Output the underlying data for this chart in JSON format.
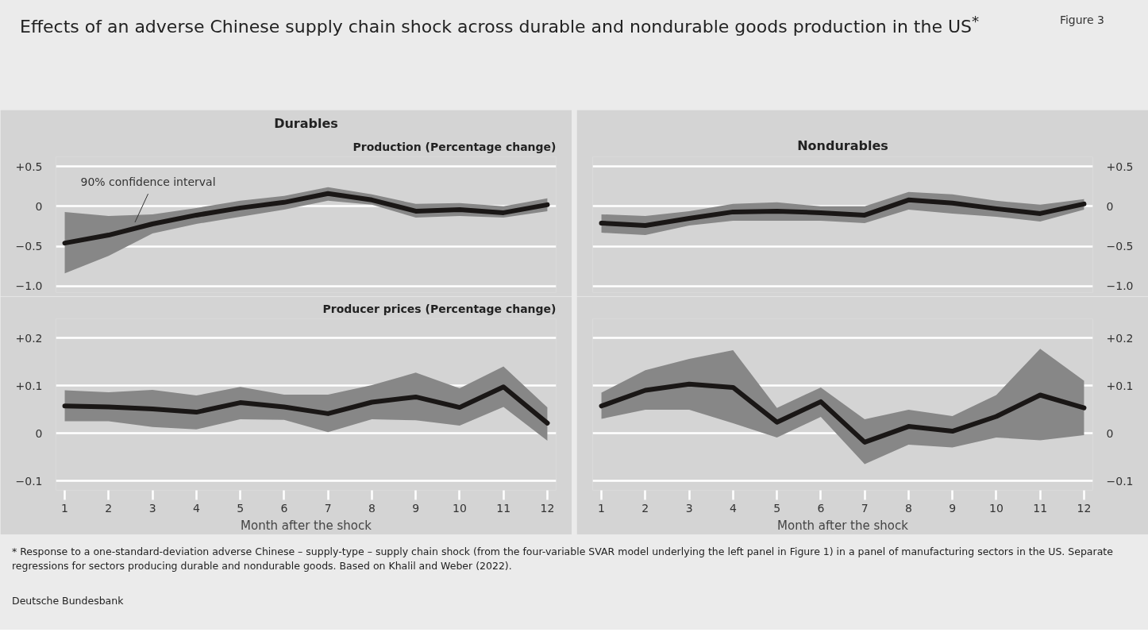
{
  "chart_data": [
    {
      "type": "line",
      "title": "Effects of an adverse Chinese supply chain shock across durable and nondurable goods production in the US$^{*}$",
      "subtitle": "Durables",
      "ylabel": "Production (Percentage change)",
      "x": [
        1,
        2,
        3,
        4,
        5,
        6,
        7,
        8,
        9,
        10,
        11,
        12
      ],
      "xlim": [
        0.8,
        12.2
      ],
      "ylim": [
        -1.08,
        0.62
      ],
      "yticks": [
        {
          "value": 0.5,
          "label": "+0.5"
        },
        0,
        {
          "value": -0.5,
          "label": "−0.5"
        },
        {
          "value": -1.0,
          "label": "−1.0"
        }
      ],
      "series": [
        {
          "color": "#1a1716",
          "values": [
            -0.46,
            -0.36,
            -0.22,
            -0.11,
            -0.02,
            0.05,
            0.16,
            0.08,
            -0.06,
            -0.04,
            -0.08,
            0.02
          ],
          "upper": [
            -0.07,
            -0.12,
            -0.1,
            -0.02,
            0.07,
            0.13,
            0.24,
            0.15,
            0.03,
            0.04,
            0.0,
            0.1
          ],
          "lower": [
            -0.84,
            -0.62,
            -0.34,
            -0.22,
            -0.13,
            -0.04,
            0.07,
            0.02,
            -0.14,
            -0.12,
            -0.14,
            -0.06
          ]
        }
      ],
      "annotations": [
        "Figure 3",
        {
          "text": "90% confidence interval",
          "x": 2.6,
          "y": -0.2
        },
        "* Response to a one-standard-deviation adverse Chinese – supply-type – supply chain shock (from the four-variable SVAR model underlying the left panel in Figure 1) in a panel of manufacturing sectors in the US. Separate regressions for sectors producing durable and nondurable goods. Based on Khalil and Weber (2022).",
        "Deutsche Bundesbank"
      ],
      "grid": "y",
      "tick_labels": "y"
    },
    {
      "type": "line",
      "subtitle": "Nondurables",
      "x": [
        1,
        2,
        3,
        4,
        5,
        6,
        7,
        8,
        9,
        10,
        11,
        12
      ],
      "xlim": [
        0.8,
        12.2
      ],
      "ylim": [
        -1.08,
        0.62
      ],
      "yticks": [
        {
          "value": 0.5,
          "label": "+0.5"
        },
        0,
        {
          "value": -0.5,
          "label": "−0.5"
        },
        {
          "value": -1.0,
          "label": "−1.0"
        }
      ],
      "series": [
        {
          "color": "#1a1716",
          "values": [
            -0.21,
            -0.24,
            -0.15,
            -0.07,
            -0.06,
            -0.08,
            -0.11,
            0.08,
            0.04,
            -0.03,
            -0.09,
            0.03
          ],
          "upper": [
            -0.1,
            -0.12,
            -0.06,
            0.03,
            0.05,
            0.0,
            0.0,
            0.18,
            0.15,
            0.07,
            0.02,
            0.09
          ],
          "lower": [
            -0.33,
            -0.36,
            -0.24,
            -0.18,
            -0.18,
            -0.18,
            -0.21,
            -0.04,
            -0.09,
            -0.13,
            -0.19,
            -0.04
          ]
        }
      ],
      "grid": "y",
      "tick_labels": "y"
    },
    {
      "type": "line",
      "ylabel": "Producer prices (Percentage change)",
      "xlabel": "Month after the shock",
      "x": [
        1,
        2,
        3,
        4,
        5,
        6,
        7,
        8,
        9,
        10,
        11,
        12
      ],
      "xlim": [
        0.8,
        12.2
      ],
      "ylim": [
        -0.12,
        0.24
      ],
      "xticks": [
        1,
        2,
        3,
        4,
        5,
        6,
        7,
        8,
        9,
        10,
        11,
        12
      ],
      "yticks": [
        {
          "value": 0.2,
          "label": "+0.2"
        },
        {
          "value": 0.1,
          "label": "+0.1"
        },
        0,
        {
          "value": -0.1,
          "label": "−0.1"
        }
      ],
      "series": [
        {
          "color": "#1a1716",
          "values": [
            0.057,
            0.055,
            0.051,
            0.044,
            0.064,
            0.055,
            0.041,
            0.065,
            0.076,
            0.054,
            0.097,
            0.021
          ],
          "upper": [
            0.09,
            0.086,
            0.091,
            0.079,
            0.097,
            0.081,
            0.081,
            0.101,
            0.127,
            0.094,
            0.14,
            0.054
          ],
          "lower": [
            0.025,
            0.025,
            0.013,
            0.008,
            0.029,
            0.028,
            0.002,
            0.029,
            0.027,
            0.016,
            0.055,
            -0.016
          ]
        }
      ],
      "grid": "y"
    },
    {
      "type": "line",
      "xlabel": "Month after the shock",
      "x": [
        1,
        2,
        3,
        4,
        5,
        6,
        7,
        8,
        9,
        10,
        11,
        12
      ],
      "xlim": [
        0.8,
        12.2
      ],
      "ylim": [
        -0.12,
        0.24
      ],
      "xticks": [
        1,
        2,
        3,
        4,
        5,
        6,
        7,
        8,
        9,
        10,
        11,
        12
      ],
      "yticks": [
        {
          "value": 0.2,
          "label": "+0.2"
        },
        {
          "value": 0.1,
          "label": "+0.1"
        },
        0,
        {
          "value": -0.1,
          "label": "−0.1"
        }
      ],
      "series": [
        {
          "color": "#1a1716",
          "values": [
            0.057,
            0.09,
            0.103,
            0.096,
            0.023,
            0.066,
            -0.019,
            0.014,
            0.004,
            0.035,
            0.08,
            0.053
          ],
          "upper": [
            0.085,
            0.132,
            0.156,
            0.174,
            0.053,
            0.096,
            0.029,
            0.049,
            0.036,
            0.08,
            0.177,
            0.11
          ],
          "lower": [
            0.03,
            0.049,
            0.049,
            0.021,
            -0.009,
            0.034,
            -0.065,
            -0.024,
            -0.03,
            -0.009,
            -0.015,
            -0.004
          ]
        }
      ],
      "grid": "y"
    }
  ]
}
